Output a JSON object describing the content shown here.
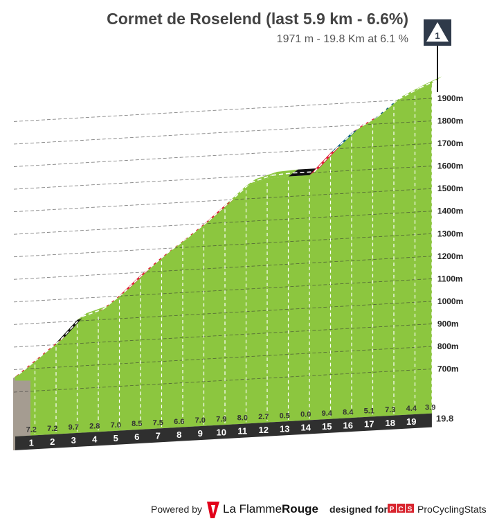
{
  "header": {
    "title": "Cormet de Roselend (last 5.9 km - 6.6%)",
    "subtitle": "1971 m - 19.8 Km at 6.1 %",
    "category_badge": "1"
  },
  "chart_data": {
    "type": "area",
    "title": "Cormet de Roselend (last 5.9 km - 6.6%)",
    "subtitle": "1971 m - 19.8 Km at 6.1 %",
    "x_unit": "km",
    "km_labels": [
      "1",
      "2",
      "3",
      "4",
      "5",
      "6",
      "7",
      "8",
      "9",
      "10",
      "11",
      "12",
      "13",
      "14",
      "15",
      "16",
      "17",
      "18",
      "19"
    ],
    "final_km_label": "19.8",
    "gradients": [
      7.2,
      7.2,
      9.7,
      2.8,
      7.0,
      8.5,
      7.5,
      6.6,
      7.0,
      7.9,
      8.0,
      2.7,
      0.5,
      0.0,
      9.4,
      8.4,
      5.1,
      7.3,
      4.4,
      3.9
    ],
    "gradient_labels": [
      "7.2",
      "7.2",
      "9.7",
      "2.8",
      "7.0",
      "8.5",
      "7.5",
      "6.6",
      "7.0",
      "7.9",
      "8.0",
      "2.7",
      "0.5",
      "0.0",
      "9.4",
      "8.4",
      "5.1",
      "7.3",
      "4.4",
      "3.9"
    ],
    "segment_colors": [
      "red",
      "red",
      "black",
      "green",
      "red",
      "red",
      "red",
      "red",
      "red",
      "red",
      "green",
      "green",
      "green",
      "black",
      "red",
      "blue",
      "red",
      "blue",
      "green",
      "green"
    ],
    "palette": {
      "green": "#8cc63f",
      "red": "#e31b3a",
      "black": "#111111",
      "blue": "#0f5f87",
      "fill": "#8cc63f",
      "base": "#2f2f2f",
      "start_wall": "#a59c91"
    },
    "y_axis": {
      "unit": "m",
      "ticks": [
        700,
        800,
        900,
        1000,
        1100,
        1200,
        1300,
        1400,
        1500,
        1600,
        1700,
        1800,
        1900
      ],
      "tick_labels": [
        "700m",
        "800m",
        "900m",
        "1000m",
        "1100m",
        "1200m",
        "1300m",
        "1400m",
        "1500m",
        "1600m",
        "1700m",
        "1800m",
        "1900m"
      ]
    },
    "summit_altitude_m": 1971,
    "distance_km": 19.8,
    "average_gradient_pct": 6.1
  },
  "footer": {
    "powered_by": "Powered by",
    "lfr_name_part1": "La Flamme",
    "lfr_name_part2": "Rouge",
    "designed_for": "designed for",
    "pcs_badge": "PCS",
    "pcs_name": "ProCyclingStats"
  }
}
